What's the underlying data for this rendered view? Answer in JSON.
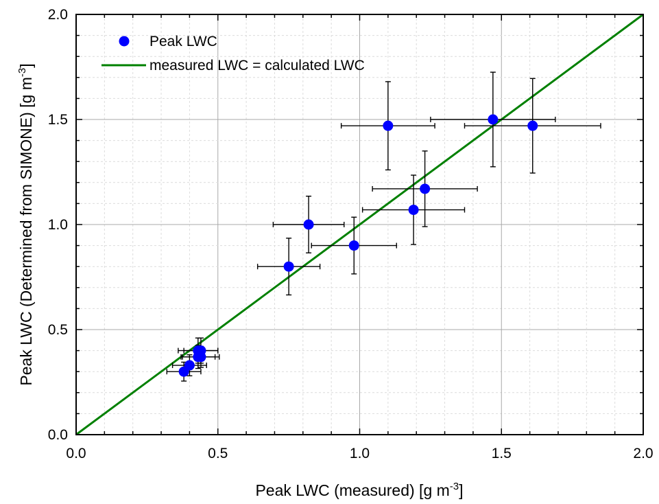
{
  "chart_data": {
    "type": "scatter",
    "xlabel": "Peak LWC (measured) [g m",
    "xlabel_sup": "-3",
    "xlabel_end": "]",
    "ylabel": "Peak LWC (Determined from SIMONE) [g m",
    "ylabel_sup": "-3",
    "ylabel_end": "]",
    "xlim": [
      0,
      2.0
    ],
    "ylim": [
      0,
      2.0
    ],
    "xticks": [
      "0.0",
      "0.5",
      "1.0",
      "1.5",
      "2.0"
    ],
    "yticks": [
      "0.0",
      "0.5",
      "1.0",
      "1.5",
      "2.0"
    ],
    "grid": true,
    "legend_position": "top-left",
    "legend": [
      {
        "label": "Peak LWC",
        "marker": "circle",
        "color": "#0000ff"
      },
      {
        "label": "measured LWC = calculated LWC",
        "marker": "line",
        "color": "#008000"
      }
    ],
    "series": [
      {
        "name": "Peak LWC",
        "color": "#0000ff",
        "points": [
          {
            "x": 0.38,
            "y": 0.3,
            "xerr": 0.06,
            "yerr": 0.045
          },
          {
            "x": 0.4,
            "y": 0.33,
            "xerr": 0.06,
            "yerr": 0.05
          },
          {
            "x": 0.43,
            "y": 0.37,
            "xerr": 0.06,
            "yerr": 0.055
          },
          {
            "x": 0.43,
            "y": 0.4,
            "xerr": 0.07,
            "yerr": 0.06
          },
          {
            "x": 0.44,
            "y": 0.4,
            "xerr": 0.06,
            "yerr": 0.06
          },
          {
            "x": 0.44,
            "y": 0.37,
            "xerr": 0.065,
            "yerr": 0.05
          },
          {
            "x": 0.75,
            "y": 0.8,
            "xerr": 0.11,
            "yerr": 0.135
          },
          {
            "x": 0.82,
            "y": 1.0,
            "xerr": 0.125,
            "yerr": 0.135
          },
          {
            "x": 0.98,
            "y": 0.9,
            "xerr": 0.15,
            "yerr": 0.135
          },
          {
            "x": 1.1,
            "y": 1.47,
            "xerr": 0.165,
            "yerr": 0.21
          },
          {
            "x": 1.19,
            "y": 1.07,
            "xerr": 0.18,
            "yerr": 0.165
          },
          {
            "x": 1.23,
            "y": 1.17,
            "xerr": 0.185,
            "yerr": 0.18
          },
          {
            "x": 1.47,
            "y": 1.5,
            "xerr": 0.22,
            "yerr": 0.225
          },
          {
            "x": 1.61,
            "y": 1.47,
            "xerr": 0.24,
            "yerr": 0.225
          }
        ]
      },
      {
        "name": "measured LWC = calculated LWC",
        "color": "#008000",
        "line": [
          [
            0,
            0
          ],
          [
            2.0,
            2.0
          ]
        ]
      }
    ]
  }
}
